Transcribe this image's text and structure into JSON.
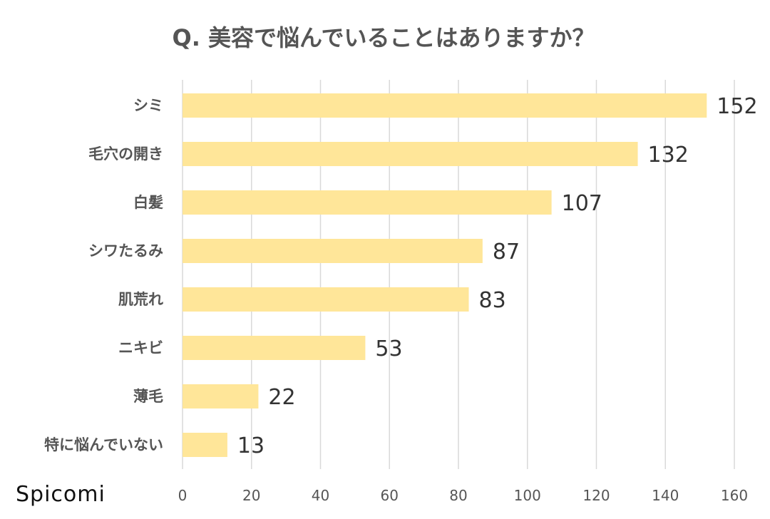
{
  "brand": "Spicomi",
  "chart_data": {
    "type": "bar",
    "orientation": "horizontal",
    "title": "Q. 美容で悩んでいることはありますか？",
    "categories": [
      "シミ",
      "毛穴の開き",
      "白髪",
      "シワたるみ",
      "肌荒れ",
      "ニキビ",
      "薄毛",
      "特に悩んでいない"
    ],
    "values": [
      152,
      132,
      107,
      87,
      83,
      53,
      22,
      13
    ],
    "xlim": [
      0,
      160
    ],
    "xticks": [
      0,
      20,
      40,
      60,
      80,
      100,
      120,
      140,
      160
    ],
    "grid": true,
    "legend": "none",
    "bar_color": "#FFE699",
    "grid_color": "#D9D9D9"
  }
}
